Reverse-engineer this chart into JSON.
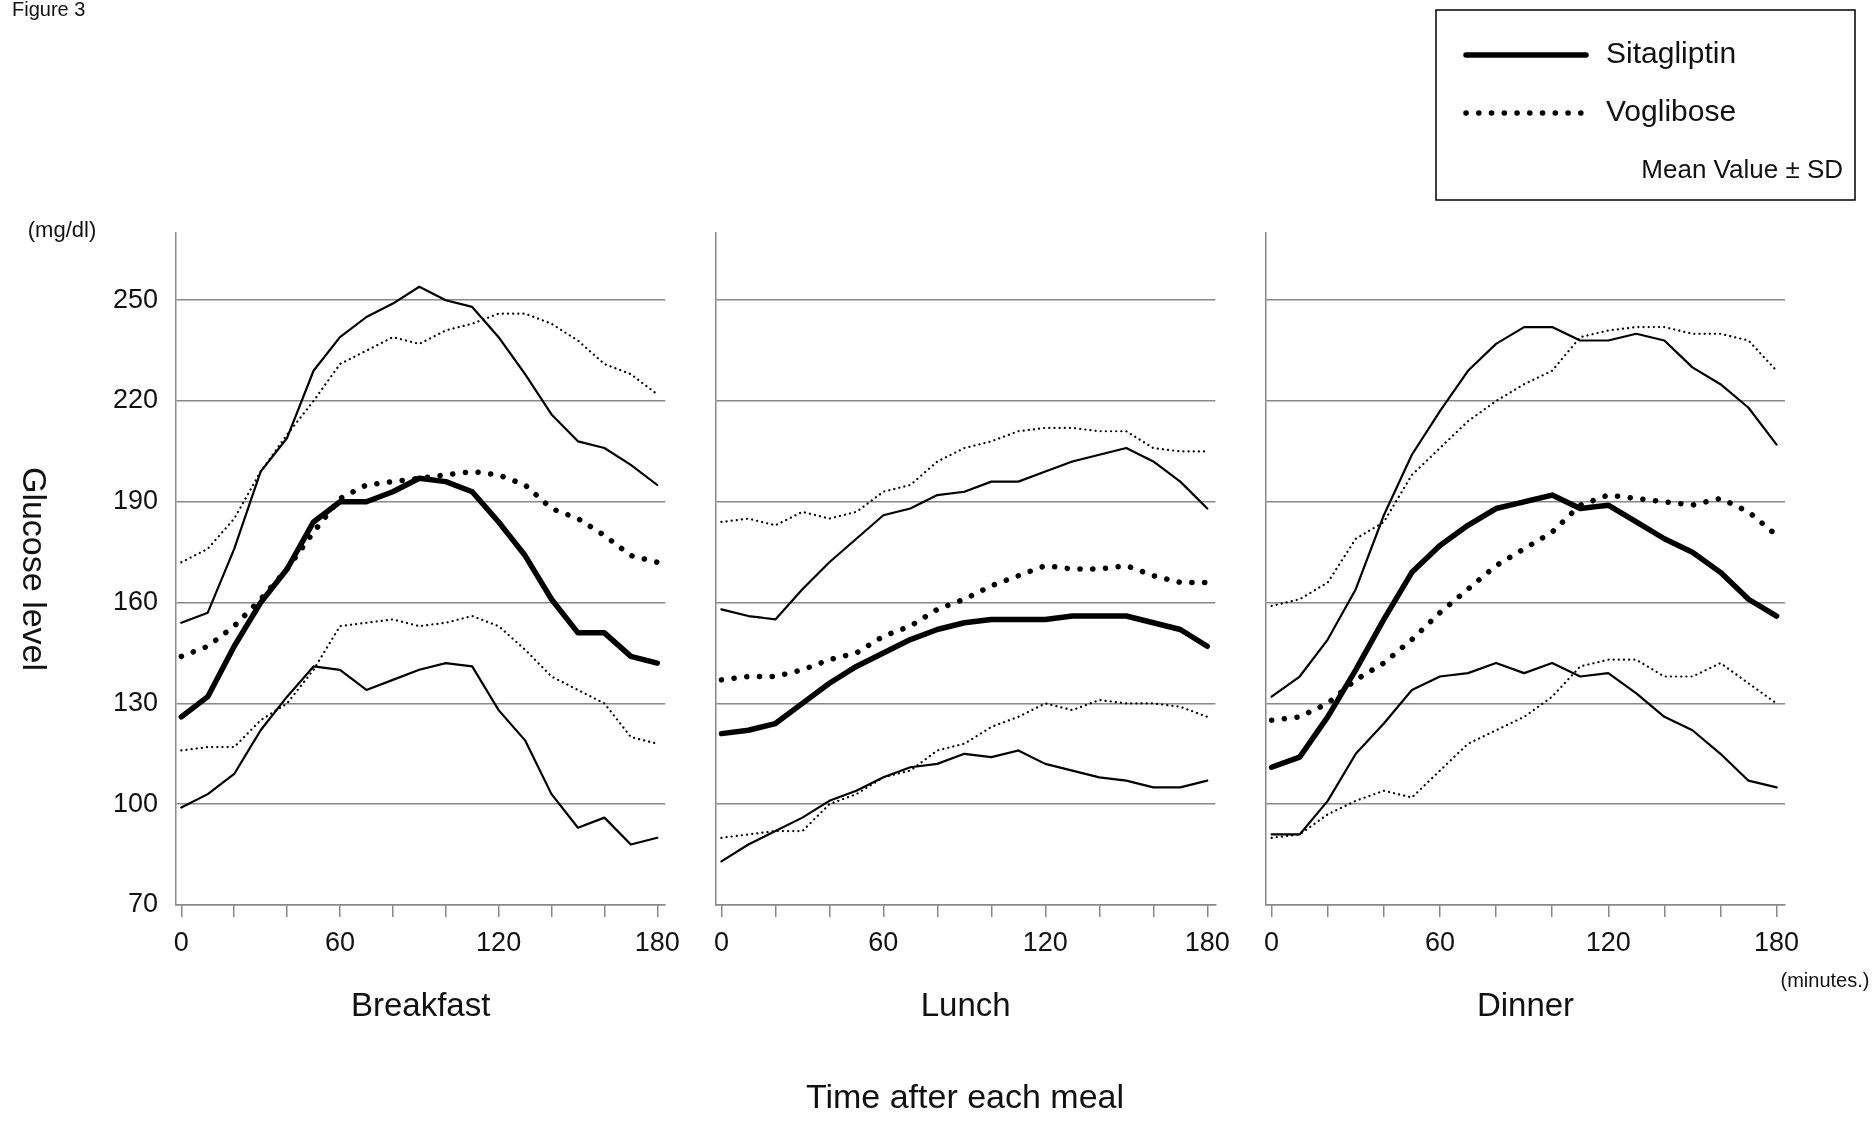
{
  "chart_data": [
    {
      "type": "line",
      "xlabel": "Breakfast",
      "ylabel": "Glucose level",
      "annotations": [
        "Figure 3",
        "(mg/dl)"
      ],
      "x": [
        0,
        10,
        20,
        30,
        40,
        50,
        60,
        70,
        80,
        90,
        100,
        110,
        120,
        130,
        140,
        150,
        160,
        170,
        180
      ],
      "xlim": [
        -2,
        183
      ],
      "xticks": [
        0,
        {
          "value": 20,
          "label": null
        },
        {
          "value": 40,
          "label": null
        },
        60,
        {
          "value": 80,
          "label": null
        },
        {
          "value": 100,
          "label": null
        },
        120,
        {
          "value": 140,
          "label": null
        },
        {
          "value": 160,
          "label": null
        },
        180
      ],
      "ylim": [
        70,
        270
      ],
      "yticks": [
        70,
        100,
        130,
        160,
        190,
        220,
        250
      ],
      "grid": "y",
      "series": [
        {
          "color": "#000000",
          "line_style": "solid",
          "values": [
            126,
            132,
            147,
            160,
            170,
            184,
            190,
            190,
            193,
            197,
            196,
            193,
            184,
            174,
            161,
            151,
            151,
            144,
            142
          ]
        },
        {
          "color": "#000000",
          "line_style": "dotted",
          "values": [
            144,
            147,
            153,
            161,
            170,
            181,
            191,
            195,
            196,
            197,
            198,
            199,
            198,
            195,
            188,
            185,
            180,
            174,
            172
          ]
        },
        {
          "color": "#000000",
          "line_style": "solid",
          "values": [
            154,
            157,
            176,
            199,
            209,
            229,
            239,
            245,
            249,
            254,
            250,
            248,
            239,
            228,
            216,
            208,
            206,
            201,
            195
          ]
        },
        {
          "color": "#000000",
          "line_style": "solid",
          "values": [
            99,
            103,
            109,
            122,
            132,
            141,
            140,
            134,
            137,
            140,
            142,
            141,
            128,
            119,
            103,
            93,
            96,
            88,
            90
          ]
        },
        {
          "color": "#000000",
          "line_style": "dotted",
          "values": [
            172,
            176,
            185,
            199,
            210,
            220,
            231,
            235,
            239,
            237,
            241,
            243,
            246,
            246,
            243,
            238,
            231,
            228,
            222
          ]
        },
        {
          "color": "#000000",
          "line_style": "dotted",
          "values": [
            116,
            117,
            117,
            125,
            130,
            140,
            153,
            154,
            155,
            153,
            154,
            156,
            153,
            146,
            138,
            134,
            130,
            120,
            118
          ]
        }
      ]
    },
    {
      "type": "line",
      "xlabel": "Lunch",
      "annotations": [
        "Time after each meal"
      ],
      "x": [
        0,
        10,
        20,
        30,
        40,
        50,
        60,
        70,
        80,
        90,
        100,
        110,
        120,
        130,
        140,
        150,
        160,
        170,
        180
      ],
      "xlim": [
        -2,
        183
      ],
      "xticks": [
        0,
        {
          "value": 20,
          "label": null
        },
        {
          "value": 40,
          "label": null
        },
        60,
        {
          "value": 80,
          "label": null
        },
        {
          "value": 100,
          "label": null
        },
        120,
        {
          "value": 140,
          "label": null
        },
        {
          "value": 160,
          "label": null
        },
        180
      ],
      "ylim": [
        70,
        270
      ],
      "yticks": [
        70,
        100,
        130,
        160,
        190,
        220,
        250
      ],
      "grid": "y",
      "tick_labels": "x",
      "series": [
        {
          "color": "#000000",
          "line_style": "solid",
          "values": [
            121,
            122,
            124,
            130,
            136,
            141,
            145,
            149,
            152,
            154,
            155,
            155,
            155,
            156,
            156,
            156,
            154,
            152,
            147
          ]
        },
        {
          "color": "#000000",
          "line_style": "dotted",
          "values": [
            137,
            138,
            138,
            140,
            143,
            145,
            150,
            153,
            158,
            161,
            165,
            168,
            171,
            170,
            170,
            171,
            168,
            166,
            166
          ]
        },
        {
          "color": "#000000",
          "line_style": "solid",
          "values": [
            158,
            156,
            155,
            164,
            172,
            179,
            186,
            188,
            192,
            193,
            196,
            196,
            199,
            202,
            204,
            206,
            202,
            196,
            188
          ]
        },
        {
          "color": "#000000",
          "line_style": "solid",
          "values": [
            83,
            88,
            92,
            96,
            101,
            104,
            108,
            111,
            112,
            115,
            114,
            116,
            112,
            110,
            108,
            107,
            105,
            105,
            107
          ]
        },
        {
          "color": "#000000",
          "line_style": "dotted",
          "values": [
            184,
            185,
            183,
            187,
            185,
            187,
            193,
            195,
            202,
            206,
            208,
            211,
            212,
            212,
            211,
            211,
            206,
            205,
            205
          ]
        },
        {
          "color": "#000000",
          "line_style": "dotted",
          "values": [
            90,
            91,
            92,
            92,
            100,
            103,
            108,
            110,
            116,
            118,
            123,
            126,
            130,
            128,
            131,
            130,
            130,
            129,
            126
          ]
        }
      ]
    },
    {
      "type": "line",
      "xlabel": "Dinner",
      "annotations": [
        "Mean Value ± SD",
        "(minutes.)"
      ],
      "legend": "top right",
      "x": [
        0,
        10,
        20,
        30,
        40,
        50,
        60,
        70,
        80,
        90,
        100,
        110,
        120,
        130,
        140,
        150,
        160,
        170,
        180
      ],
      "xlim": [
        -2,
        183
      ],
      "xticks": [
        0,
        {
          "value": 20,
          "label": null
        },
        {
          "value": 40,
          "label": null
        },
        60,
        {
          "value": 80,
          "label": null
        },
        {
          "value": 100,
          "label": null
        },
        120,
        {
          "value": 140,
          "label": null
        },
        {
          "value": 160,
          "label": null
        },
        180
      ],
      "ylim": [
        70,
        270
      ],
      "yticks": [
        70,
        100,
        130,
        160,
        190,
        220,
        250
      ],
      "grid": "y",
      "tick_labels": "x",
      "series": [
        {
          "name": "Sitagliptin",
          "color": "#000000",
          "line_style": "solid",
          "values": [
            111,
            114,
            126,
            140,
            155,
            169,
            177,
            183,
            188,
            190,
            192,
            188,
            189,
            184,
            179,
            175,
            169,
            161,
            156
          ]
        },
        {
          "name": "Voglibose",
          "color": "#000000",
          "line_style": "dotted",
          "values": [
            125,
            126,
            130,
            137,
            142,
            149,
            157,
            164,
            171,
            176,
            181,
            189,
            192,
            191,
            190,
            189,
            191,
            187,
            180
          ]
        },
        {
          "color": "#000000",
          "line_style": "solid",
          "values": [
            132,
            138,
            149,
            164,
            186,
            204,
            217,
            229,
            237,
            242,
            242,
            238,
            238,
            240,
            238,
            230,
            225,
            218,
            207
          ]
        },
        {
          "color": "#000000",
          "line_style": "solid",
          "values": [
            91,
            91,
            101,
            115,
            124,
            134,
            138,
            139,
            142,
            139,
            142,
            138,
            139,
            133,
            126,
            122,
            115,
            107,
            105
          ]
        },
        {
          "color": "#000000",
          "line_style": "dotted",
          "values": [
            159,
            161,
            166,
            179,
            184,
            198,
            206,
            214,
            220,
            225,
            229,
            239,
            241,
            242,
            242,
            240,
            240,
            238,
            229
          ]
        },
        {
          "color": "#000000",
          "line_style": "dotted",
          "values": [
            90,
            91,
            97,
            101,
            104,
            102,
            110,
            118,
            122,
            126,
            132,
            141,
            143,
            143,
            138,
            138,
            142,
            136,
            130
          ]
        }
      ]
    }
  ]
}
